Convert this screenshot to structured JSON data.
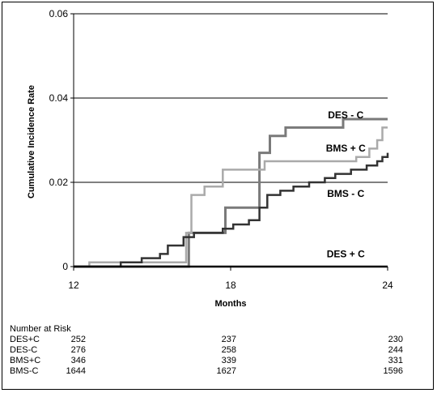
{
  "chart_data": {
    "type": "line",
    "title": "",
    "xlabel": "Months",
    "ylabel": "Cumulative Incidence Rate",
    "xlim": [
      12,
      24
    ],
    "ylim": [
      0,
      0.06
    ],
    "xticks": [
      "12",
      "18",
      "24"
    ],
    "yticks": [
      "0",
      "0.02",
      "0.04",
      "0.06"
    ],
    "grid": "horizontal",
    "series": [
      {
        "name": "DES - C",
        "color": "#7a7a7a",
        "width": 3,
        "points": [
          [
            12,
            0
          ],
          [
            16.4,
            0
          ],
          [
            16.4,
            0.008
          ],
          [
            17.8,
            0.008
          ],
          [
            17.8,
            0.014
          ],
          [
            19.1,
            0.014
          ],
          [
            19.1,
            0.027
          ],
          [
            19.5,
            0.027
          ],
          [
            19.5,
            0.031
          ],
          [
            20.1,
            0.031
          ],
          [
            20.1,
            0.033
          ],
          [
            22.3,
            0.033
          ],
          [
            22.3,
            0.035
          ],
          [
            24,
            0.035
          ]
        ]
      },
      {
        "name": "BMS + C",
        "color": "#aaaaaa",
        "width": 2.5,
        "points": [
          [
            12,
            0
          ],
          [
            12.6,
            0
          ],
          [
            12.6,
            0.001
          ],
          [
            16.3,
            0.001
          ],
          [
            16.3,
            0.008
          ],
          [
            16.5,
            0.008
          ],
          [
            16.5,
            0.017
          ],
          [
            17,
            0.017
          ],
          [
            17,
            0.019
          ],
          [
            17.7,
            0.019
          ],
          [
            17.7,
            0.023
          ],
          [
            19.3,
            0.023
          ],
          [
            19.3,
            0.025
          ],
          [
            22.8,
            0.025
          ],
          [
            22.8,
            0.026
          ],
          [
            23.3,
            0.026
          ],
          [
            23.3,
            0.028
          ],
          [
            23.6,
            0.028
          ],
          [
            23.6,
            0.03
          ],
          [
            23.8,
            0.03
          ],
          [
            23.8,
            0.033
          ],
          [
            24,
            0.033
          ]
        ]
      },
      {
        "name": "BMS - C",
        "color": "#333333",
        "width": 2.5,
        "points": [
          [
            12,
            0
          ],
          [
            13.8,
            0
          ],
          [
            13.8,
            0.001
          ],
          [
            14.6,
            0.001
          ],
          [
            14.6,
            0.002
          ],
          [
            15.3,
            0.002
          ],
          [
            15.3,
            0.003
          ],
          [
            15.6,
            0.003
          ],
          [
            15.6,
            0.005
          ],
          [
            16.2,
            0.005
          ],
          [
            16.2,
            0.007
          ],
          [
            16.6,
            0.007
          ],
          [
            16.6,
            0.008
          ],
          [
            17.7,
            0.008
          ],
          [
            17.7,
            0.009
          ],
          [
            18.1,
            0.009
          ],
          [
            18.1,
            0.01
          ],
          [
            18.7,
            0.01
          ],
          [
            18.7,
            0.011
          ],
          [
            19.1,
            0.011
          ],
          [
            19.1,
            0.014
          ],
          [
            19.4,
            0.014
          ],
          [
            19.4,
            0.017
          ],
          [
            19.9,
            0.017
          ],
          [
            19.9,
            0.018
          ],
          [
            20.4,
            0.018
          ],
          [
            20.4,
            0.019
          ],
          [
            21,
            0.019
          ],
          [
            21,
            0.02
          ],
          [
            21.6,
            0.02
          ],
          [
            21.6,
            0.021
          ],
          [
            22,
            0.021
          ],
          [
            22,
            0.022
          ],
          [
            22.6,
            0.022
          ],
          [
            22.6,
            0.023
          ],
          [
            23.2,
            0.023
          ],
          [
            23.2,
            0.024
          ],
          [
            23.6,
            0.024
          ],
          [
            23.6,
            0.025
          ],
          [
            23.8,
            0.025
          ],
          [
            23.8,
            0.026
          ],
          [
            24,
            0.026
          ],
          [
            24,
            0.027
          ]
        ]
      },
      {
        "name": "DES + C",
        "color": "#000000",
        "width": 2.5,
        "points": [
          [
            12,
            0
          ],
          [
            24,
            0
          ]
        ]
      }
    ],
    "legend": "inline-right",
    "labels": [
      {
        "text": "DES - C",
        "x": 22.4,
        "y": 0.0352
      },
      {
        "text": "BMS + C",
        "x": 22.4,
        "y": 0.0273
      },
      {
        "text": "BMS - C",
        "x": 22.4,
        "y": 0.0165
      },
      {
        "text": "DES + C",
        "x": 22.4,
        "y": 0.0022
      }
    ]
  },
  "risk_table": {
    "title": "Number at Risk",
    "rows": [
      {
        "label": "DES+C",
        "values": [
          "252",
          "237",
          "230"
        ]
      },
      {
        "label": "DES-C",
        "values": [
          "276",
          "258",
          "244"
        ]
      },
      {
        "label": "BMS+C",
        "values": [
          "346",
          "339",
          "331"
        ]
      },
      {
        "label": "BMS-C",
        "values": [
          "1644",
          "1627",
          "1596"
        ]
      }
    ]
  }
}
